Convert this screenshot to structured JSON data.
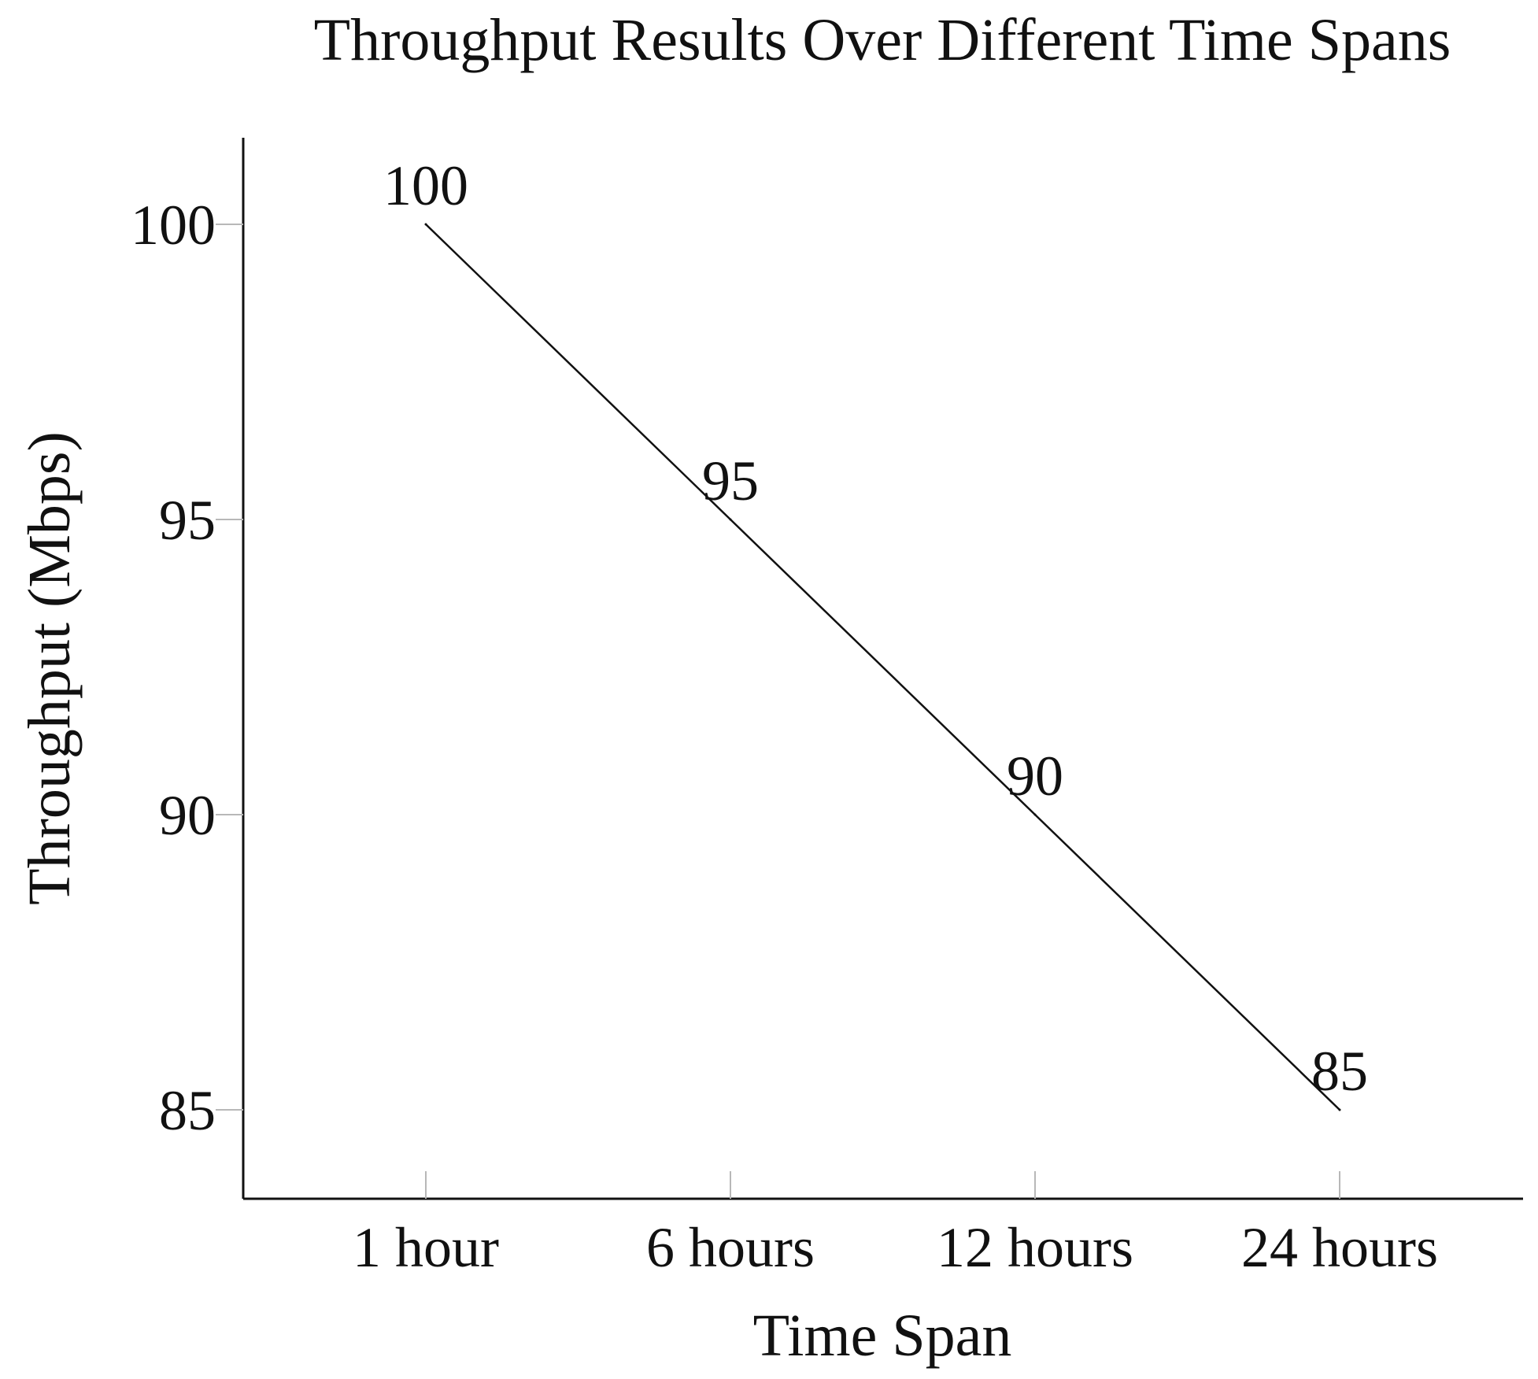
{
  "chart_data": {
    "type": "line",
    "title": "Throughput Results Over Different Time Spans",
    "xlabel": "Time Span",
    "ylabel": "Throughput (Mbps)",
    "categories": [
      "1 hour",
      "6 hours",
      "12 hours",
      "24 hours"
    ],
    "series": [
      {
        "values": [
          100,
          95,
          90,
          85
        ],
        "color": "#111111"
      }
    ],
    "data_labels": [
      "100",
      "95",
      "90",
      "85"
    ],
    "yticks": [
      85,
      90,
      95,
      100
    ],
    "ytick_labels": [
      "85",
      "90",
      "95",
      "100"
    ],
    "ylim": [
      83.5,
      101.45
    ],
    "grid": false,
    "legend": "none",
    "axis_style": "left-bottom"
  }
}
